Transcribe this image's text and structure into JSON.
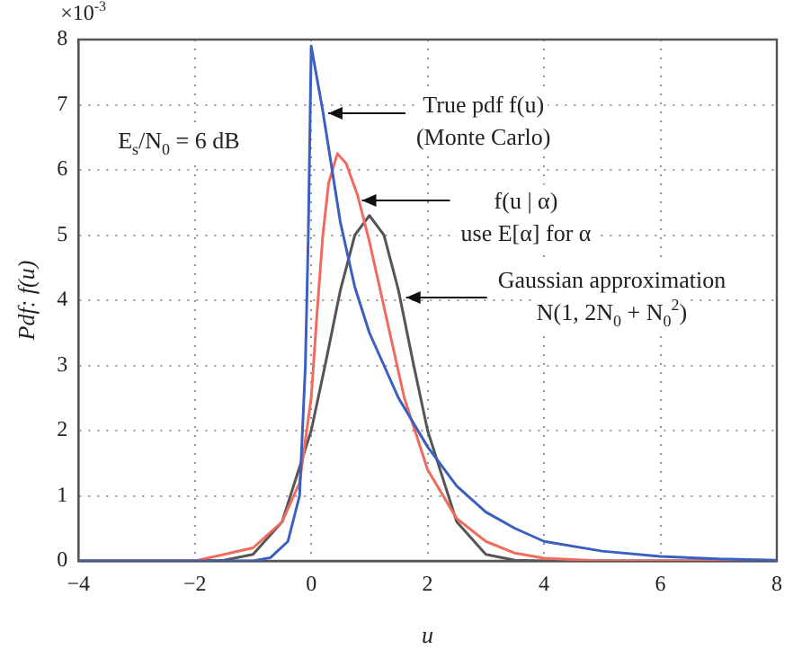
{
  "chart_data": {
    "type": "line",
    "xlabel": "u",
    "ylabel": "Pdf: f(u)",
    "xlim": [
      -4,
      8
    ],
    "ylim": [
      0,
      8
    ],
    "xticks": [
      {
        "value": -4,
        "label": "−4"
      },
      {
        "value": -2,
        "label": "−2"
      },
      0,
      2,
      4,
      6,
      8
    ],
    "yticks": [
      0,
      1,
      2,
      3,
      4,
      5,
      6,
      7,
      8
    ],
    "grid": true,
    "legend": false,
    "marker": "none",
    "line_style": "solid",
    "annotations": [
      "×10$^{-3}$",
      "E$_{s}$/N$_{0}$ = 6 dB",
      {
        "text": "True pdf f(u)\n(Monte Carlo)",
        "x": 0.26,
        "y": 6.87
      },
      {
        "text": "f(u | α)\nuse E[α] for α",
        "x": 0.84,
        "y": 5.53
      },
      {
        "text": "Gaussian approximation\nN(1, 2N$_{0}$ + N$_{0}$$^{2}$)",
        "x": 1.6,
        "y": 4.04
      }
    ],
    "series": [
      {
        "color": "#3b5fc0",
        "x": [
          -4,
          -1,
          -0.7,
          -0.4,
          -0.2,
          -0.1,
          -0.05,
          0,
          0.2,
          0.5,
          0.75,
          1,
          1.5,
          2,
          2.5,
          3,
          3.5,
          4,
          5,
          6,
          7,
          8
        ],
        "values": [
          0,
          0,
          0.05,
          0.3,
          1,
          3,
          5,
          7.9,
          6.9,
          5.2,
          4.2,
          3.5,
          2.5,
          1.75,
          1.15,
          0.75,
          0.5,
          0.3,
          0.15,
          0.07,
          0.03,
          0.01
        ]
      },
      {
        "color": "#f26a5e",
        "x": [
          -4,
          -2,
          -1,
          -0.5,
          -0.2,
          0,
          0.1,
          0.2,
          0.3,
          0.45,
          0.6,
          0.8,
          1,
          1.2,
          1.4,
          1.6,
          2,
          2.5,
          3,
          3.5,
          4,
          5,
          8
        ],
        "values": [
          0,
          0,
          0.2,
          0.6,
          1.2,
          2.5,
          3.8,
          5,
          5.8,
          6.25,
          6.1,
          5.6,
          4.9,
          4.1,
          3.3,
          2.5,
          1.4,
          0.65,
          0.3,
          0.12,
          0.04,
          0,
          0
        ]
      },
      {
        "color": "#555555",
        "x": [
          -4,
          -2,
          -1.5,
          -1,
          -0.5,
          0,
          0.25,
          0.5,
          0.75,
          1,
          1.25,
          1.5,
          1.75,
          2,
          2.5,
          3,
          3.5,
          4,
          8
        ],
        "values": [
          0,
          0,
          0.01,
          0.1,
          0.6,
          2,
          3.05,
          4.15,
          5,
          5.3,
          5,
          4.15,
          3.05,
          2,
          0.6,
          0.1,
          0.01,
          0,
          0
        ]
      }
    ]
  }
}
